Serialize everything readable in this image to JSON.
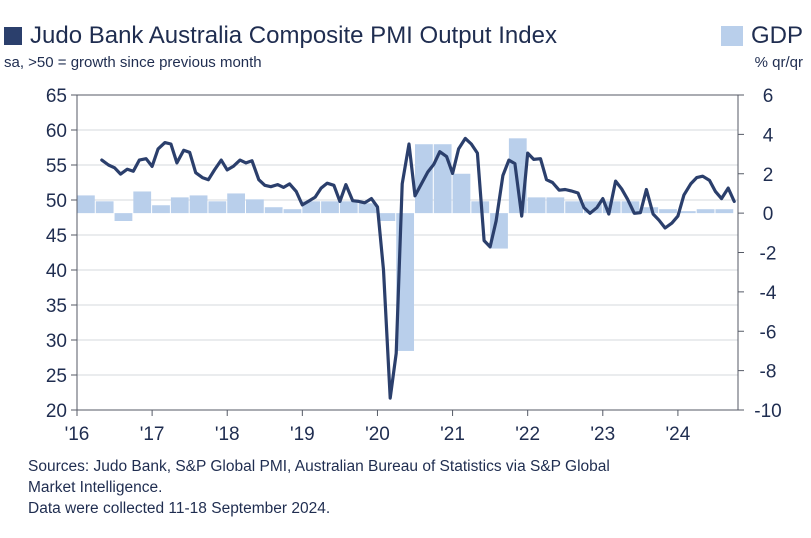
{
  "legend": {
    "series_label": "Judo Bank Australia Composite PMI Output Index",
    "series_color": "#2b3f6c",
    "bar_label": "GDP",
    "bar_color": "#b9cfeb"
  },
  "subtitle": "sa, >50 = growth since previous month",
  "right_axis_unit": "% qr/qr",
  "sources": {
    "line1": "Sources: Judo Bank, S&P Global PMI, Australian Bureau of Statistics via S&P Global",
    "line2": "Market Intelligence.",
    "line3": "Data were collected 11-18 September 2024."
  },
  "chart_data": {
    "type": "line+bar",
    "title": "Judo Bank Australia Composite PMI Output Index",
    "subtitle": "sa, >50 = growth since previous month",
    "x_range": [
      2016.0,
      2024.8
    ],
    "x_ticks": [
      2016,
      2017,
      2018,
      2019,
      2020,
      2021,
      2022,
      2023,
      2024
    ],
    "x_tick_labels": [
      "'16",
      "'17",
      "'18",
      "'19",
      "'20",
      "'21",
      "'22",
      "'23",
      "'24"
    ],
    "left_axis": {
      "label": "",
      "range": [
        20,
        65
      ],
      "ticks": [
        20,
        25,
        30,
        35,
        40,
        45,
        50,
        55,
        60,
        65
      ]
    },
    "right_axis": {
      "label": "% qr/qr",
      "range": [
        -10,
        6
      ],
      "ticks": [
        -10,
        -8,
        -6,
        -4,
        -2,
        0,
        2,
        4,
        6
      ]
    },
    "gridlines": "horizontal",
    "series": [
      {
        "name": "Judo Bank Australia Composite PMI Output Index",
        "kind": "line",
        "axis": "left",
        "color": "#2b3f6c",
        "x": [
          2016.33,
          2016.42,
          2016.5,
          2016.58,
          2016.67,
          2016.75,
          2016.83,
          2016.92,
          2017.0,
          2017.08,
          2017.17,
          2017.25,
          2017.33,
          2017.42,
          2017.5,
          2017.58,
          2017.67,
          2017.75,
          2017.83,
          2017.92,
          2018.0,
          2018.08,
          2018.17,
          2018.25,
          2018.33,
          2018.42,
          2018.5,
          2018.58,
          2018.67,
          2018.75,
          2018.83,
          2018.92,
          2019.0,
          2019.08,
          2019.17,
          2019.25,
          2019.33,
          2019.42,
          2019.5,
          2019.58,
          2019.67,
          2019.75,
          2019.83,
          2019.92,
          2020.0,
          2020.08,
          2020.17,
          2020.25,
          2020.33,
          2020.42,
          2020.5,
          2020.58,
          2020.67,
          2020.75,
          2020.83,
          2020.92,
          2021.0,
          2021.08,
          2021.17,
          2021.25,
          2021.33,
          2021.42,
          2021.5,
          2021.58,
          2021.67,
          2021.75,
          2021.83,
          2021.92,
          2022.0,
          2022.08,
          2022.17,
          2022.25,
          2022.33,
          2022.42,
          2022.5,
          2022.58,
          2022.67,
          2022.75,
          2022.83,
          2022.92,
          2023.0,
          2023.08,
          2023.17,
          2023.25,
          2023.33,
          2023.42,
          2023.5,
          2023.58,
          2023.67,
          2023.75,
          2023.83,
          2023.92,
          2024.0,
          2024.08,
          2024.17,
          2024.25,
          2024.33,
          2024.42,
          2024.5,
          2024.58,
          2024.67,
          2024.75
        ],
        "values": [
          55.7,
          55.0,
          54.6,
          53.7,
          54.4,
          54.1,
          55.7,
          55.9,
          54.8,
          57.3,
          58.2,
          58.0,
          55.3,
          57.1,
          56.8,
          53.9,
          53.2,
          52.9,
          54.3,
          55.7,
          54.3,
          54.8,
          55.7,
          55.3,
          55.6,
          52.9,
          52.1,
          51.9,
          52.2,
          51.8,
          52.3,
          51.2,
          49.3,
          49.8,
          50.4,
          51.7,
          52.4,
          52.1,
          49.8,
          52.2,
          49.9,
          49.8,
          49.6,
          50.2,
          49.0,
          40.0,
          21.7,
          28.1,
          52.3,
          58.0,
          50.6,
          52.2,
          54.0,
          55.1,
          56.9,
          56.2,
          53.8,
          57.3,
          58.8,
          58.0,
          56.7,
          44.2,
          43.3,
          47.0,
          53.5,
          55.7,
          55.2,
          47.7,
          56.7,
          55.8,
          55.9,
          52.9,
          52.5,
          51.4,
          51.5,
          51.3,
          51.0,
          48.9,
          48.1,
          48.9,
          50.2,
          48.0,
          52.7,
          51.6,
          50.1,
          48.1,
          48.2,
          51.5,
          48.0,
          47.1,
          46.0,
          46.7,
          47.7,
          50.7,
          52.3,
          53.2,
          53.4,
          52.8,
          51.2,
          50.2,
          51.7,
          49.8
        ]
      },
      {
        "name": "GDP",
        "kind": "bar",
        "axis": "right",
        "color": "#b9cfeb",
        "x": [
          2016.0,
          2016.25,
          2016.5,
          2016.75,
          2017.0,
          2017.25,
          2017.5,
          2017.75,
          2018.0,
          2018.25,
          2018.5,
          2018.75,
          2019.0,
          2019.25,
          2019.5,
          2019.75,
          2020.0,
          2020.25,
          2020.5,
          2020.75,
          2021.0,
          2021.25,
          2021.5,
          2021.75,
          2022.0,
          2022.25,
          2022.5,
          2022.75,
          2023.0,
          2023.25,
          2023.5,
          2023.75,
          2024.0,
          2024.25,
          2024.5
        ],
        "values": [
          0.9,
          0.6,
          -0.4,
          1.1,
          0.4,
          0.8,
          0.9,
          0.6,
          1.0,
          0.7,
          0.3,
          0.2,
          0.6,
          0.6,
          0.6,
          0.5,
          -0.4,
          -7.0,
          3.5,
          3.5,
          2.0,
          0.6,
          -1.8,
          3.8,
          0.8,
          0.8,
          0.6,
          0.6,
          0.6,
          0.6,
          0.3,
          0.2,
          0.1,
          0.2,
          0.2
        ]
      }
    ]
  }
}
